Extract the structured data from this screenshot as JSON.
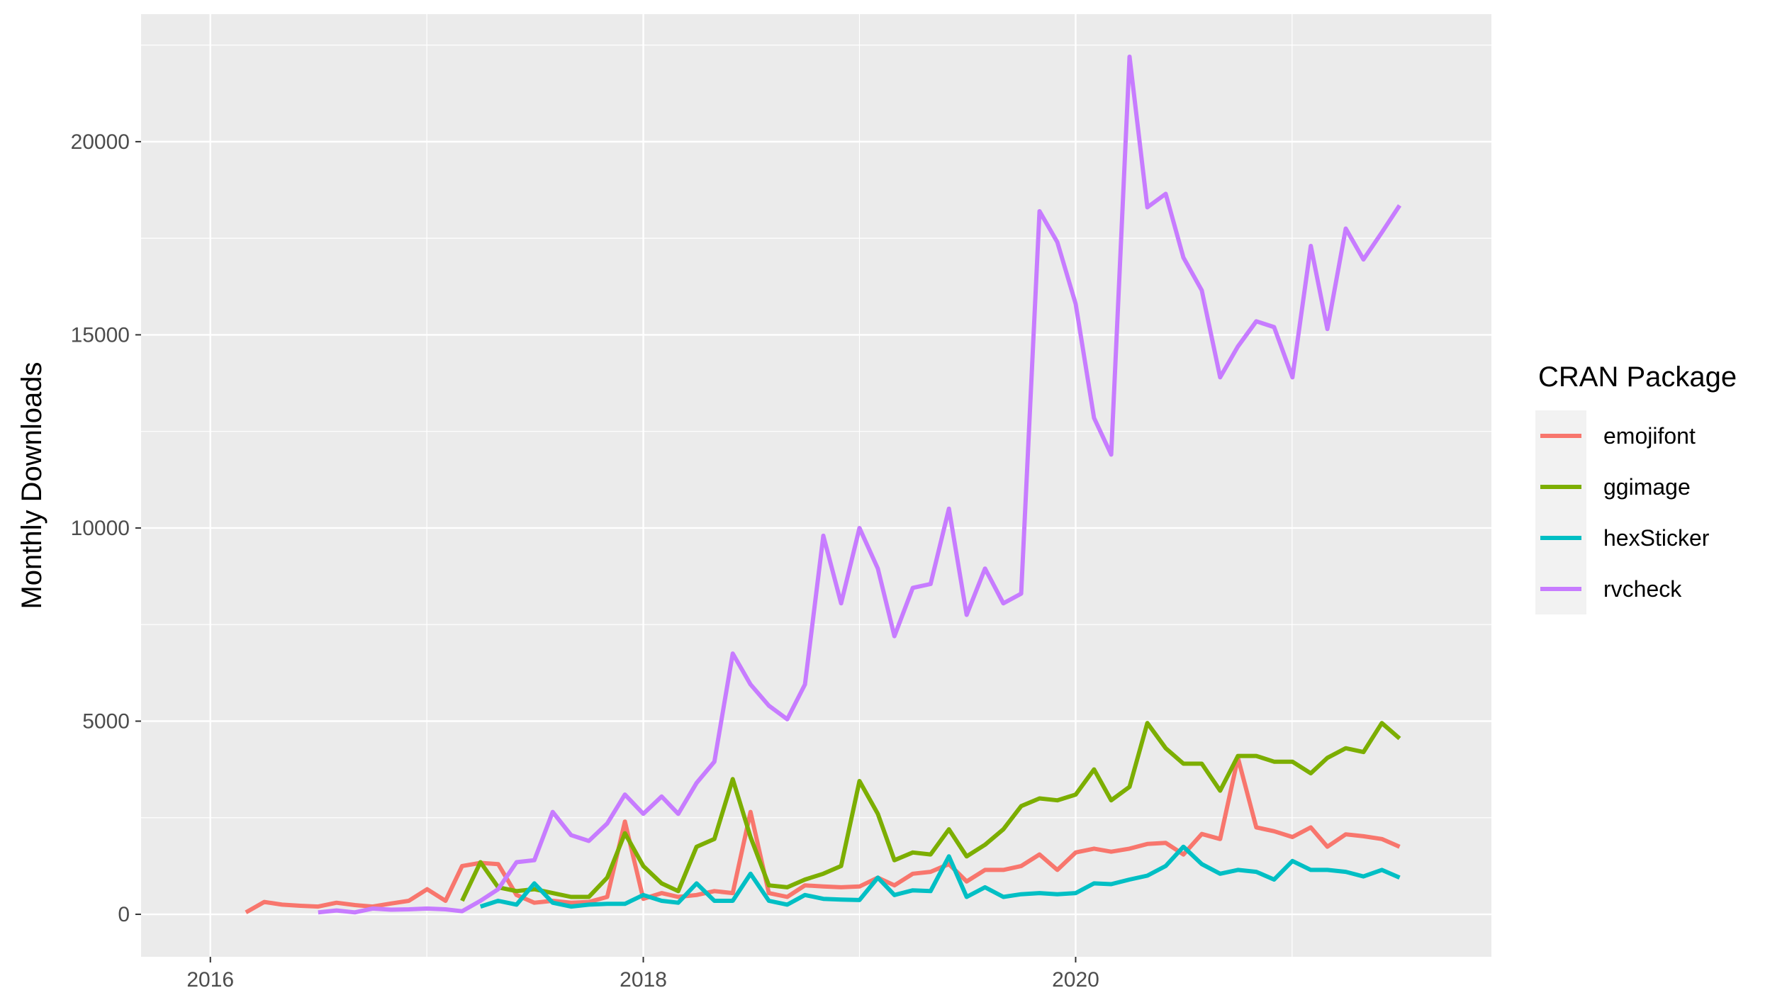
{
  "chart_data": {
    "type": "line",
    "title": "",
    "xlabel": "",
    "ylabel": "Monthly Downloads",
    "xlim": [
      "2015-09-06",
      "2021-12-03"
    ],
    "ylim": [
      -1100,
      23300
    ],
    "x_ticks": [
      {
        "date": "2016-01-01",
        "label": "2016"
      },
      {
        "date": "2018-01-01",
        "label": "2018"
      },
      {
        "date": "2020-01-01",
        "label": "2020"
      }
    ],
    "y_ticks": [
      {
        "value": 0,
        "label": "0"
      },
      {
        "value": 5000,
        "label": "5000"
      },
      {
        "value": 10000,
        "label": "10000"
      },
      {
        "value": 15000,
        "label": "15000"
      },
      {
        "value": 20000,
        "label": "20000"
      }
    ],
    "grid": true,
    "legend": {
      "title": "CRAN Package",
      "position": "right"
    },
    "series": [
      {
        "name": "emojifont",
        "color": "#F8766D",
        "points": [
          [
            "2016-03-01",
            50
          ],
          [
            "2016-04-01",
            320
          ],
          [
            "2016-05-01",
            250
          ],
          [
            "2016-06-01",
            220
          ],
          [
            "2016-07-01",
            200
          ],
          [
            "2016-08-01",
            300
          ],
          [
            "2016-09-01",
            240
          ],
          [
            "2016-10-01",
            200
          ],
          [
            "2016-11-01",
            280
          ],
          [
            "2016-12-01",
            350
          ],
          [
            "2017-01-01",
            650
          ],
          [
            "2017-02-01",
            350
          ],
          [
            "2017-03-01",
            1250
          ],
          [
            "2017-04-01",
            1330
          ],
          [
            "2017-05-01",
            1300
          ],
          [
            "2017-06-01",
            500
          ],
          [
            "2017-07-01",
            300
          ],
          [
            "2017-08-01",
            350
          ],
          [
            "2017-09-01",
            300
          ],
          [
            "2017-10-01",
            320
          ],
          [
            "2017-11-01",
            450
          ],
          [
            "2017-12-01",
            2400
          ],
          [
            "2018-01-01",
            400
          ],
          [
            "2018-02-01",
            550
          ],
          [
            "2018-03-01",
            450
          ],
          [
            "2018-04-01",
            500
          ],
          [
            "2018-05-01",
            600
          ],
          [
            "2018-06-01",
            550
          ],
          [
            "2018-07-01",
            2650
          ],
          [
            "2018-08-01",
            550
          ],
          [
            "2018-09-01",
            450
          ],
          [
            "2018-10-01",
            750
          ],
          [
            "2018-11-01",
            720
          ],
          [
            "2018-12-01",
            700
          ],
          [
            "2019-01-01",
            720
          ],
          [
            "2019-02-01",
            950
          ],
          [
            "2019-03-01",
            750
          ],
          [
            "2019-04-01",
            1050
          ],
          [
            "2019-05-01",
            1100
          ],
          [
            "2019-06-01",
            1300
          ],
          [
            "2019-07-01",
            850
          ],
          [
            "2019-08-01",
            1150
          ],
          [
            "2019-09-01",
            1150
          ],
          [
            "2019-10-01",
            1250
          ],
          [
            "2019-11-01",
            1550
          ],
          [
            "2019-12-01",
            1150
          ],
          [
            "2020-01-01",
            1600
          ],
          [
            "2020-02-01",
            1700
          ],
          [
            "2020-03-01",
            1620
          ],
          [
            "2020-04-01",
            1700
          ],
          [
            "2020-05-01",
            1820
          ],
          [
            "2020-06-01",
            1850
          ],
          [
            "2020-07-01",
            1550
          ],
          [
            "2020-08-01",
            2080
          ],
          [
            "2020-09-01",
            1950
          ],
          [
            "2020-10-01",
            4050
          ],
          [
            "2020-11-01",
            2250
          ],
          [
            "2020-12-01",
            2150
          ],
          [
            "2021-01-01",
            2000
          ],
          [
            "2021-02-01",
            2250
          ],
          [
            "2021-03-01",
            1750
          ],
          [
            "2021-04-01",
            2070
          ],
          [
            "2021-05-01",
            2020
          ],
          [
            "2021-06-01",
            1950
          ],
          [
            "2021-07-01",
            1750
          ]
        ]
      },
      {
        "name": "ggimage",
        "color": "#7CAE00",
        "points": [
          [
            "2017-03-01",
            350
          ],
          [
            "2017-04-01",
            1350
          ],
          [
            "2017-05-01",
            700
          ],
          [
            "2017-06-01",
            600
          ],
          [
            "2017-07-01",
            650
          ],
          [
            "2017-08-01",
            550
          ],
          [
            "2017-09-01",
            450
          ],
          [
            "2017-10-01",
            450
          ],
          [
            "2017-11-01",
            950
          ],
          [
            "2017-12-01",
            2100
          ],
          [
            "2018-01-01",
            1250
          ],
          [
            "2018-02-01",
            800
          ],
          [
            "2018-03-01",
            600
          ],
          [
            "2018-04-01",
            1750
          ],
          [
            "2018-05-01",
            1950
          ],
          [
            "2018-06-01",
            3500
          ],
          [
            "2018-07-01",
            2000
          ],
          [
            "2018-08-01",
            750
          ],
          [
            "2018-09-01",
            700
          ],
          [
            "2018-10-01",
            900
          ],
          [
            "2018-11-01",
            1050
          ],
          [
            "2018-12-01",
            1250
          ],
          [
            "2019-01-01",
            3450
          ],
          [
            "2019-02-01",
            2600
          ],
          [
            "2019-03-01",
            1400
          ],
          [
            "2019-04-01",
            1600
          ],
          [
            "2019-05-01",
            1550
          ],
          [
            "2019-06-01",
            2200
          ],
          [
            "2019-07-01",
            1500
          ],
          [
            "2019-08-01",
            1800
          ],
          [
            "2019-09-01",
            2200
          ],
          [
            "2019-10-01",
            2800
          ],
          [
            "2019-11-01",
            3000
          ],
          [
            "2019-12-01",
            2950
          ],
          [
            "2020-01-01",
            3100
          ],
          [
            "2020-02-01",
            3750
          ],
          [
            "2020-03-01",
            2950
          ],
          [
            "2020-04-01",
            3300
          ],
          [
            "2020-05-01",
            4950
          ],
          [
            "2020-06-01",
            4300
          ],
          [
            "2020-07-01",
            3900
          ],
          [
            "2020-08-01",
            3900
          ],
          [
            "2020-09-01",
            3200
          ],
          [
            "2020-10-01",
            4100
          ],
          [
            "2020-11-01",
            4100
          ],
          [
            "2020-12-01",
            3950
          ],
          [
            "2021-01-01",
            3950
          ],
          [
            "2021-02-01",
            3650
          ],
          [
            "2021-03-01",
            4050
          ],
          [
            "2021-04-01",
            4300
          ],
          [
            "2021-05-01",
            4200
          ],
          [
            "2021-06-01",
            4950
          ],
          [
            "2021-07-01",
            4550
          ]
        ]
      },
      {
        "name": "hexSticker",
        "color": "#00BFC4",
        "points": [
          [
            "2017-04-01",
            200
          ],
          [
            "2017-05-01",
            350
          ],
          [
            "2017-06-01",
            250
          ],
          [
            "2017-07-01",
            800
          ],
          [
            "2017-08-01",
            300
          ],
          [
            "2017-09-01",
            200
          ],
          [
            "2017-10-01",
            250
          ],
          [
            "2017-11-01",
            270
          ],
          [
            "2017-12-01",
            270
          ],
          [
            "2018-01-01",
            500
          ],
          [
            "2018-02-01",
            350
          ],
          [
            "2018-03-01",
            300
          ],
          [
            "2018-04-01",
            800
          ],
          [
            "2018-05-01",
            350
          ],
          [
            "2018-06-01",
            350
          ],
          [
            "2018-07-01",
            1050
          ],
          [
            "2018-08-01",
            350
          ],
          [
            "2018-09-01",
            250
          ],
          [
            "2018-10-01",
            500
          ],
          [
            "2018-11-01",
            400
          ],
          [
            "2018-12-01",
            380
          ],
          [
            "2019-01-01",
            370
          ],
          [
            "2019-02-01",
            950
          ],
          [
            "2019-03-01",
            500
          ],
          [
            "2019-04-01",
            620
          ],
          [
            "2019-05-01",
            600
          ],
          [
            "2019-06-01",
            1500
          ],
          [
            "2019-07-01",
            450
          ],
          [
            "2019-08-01",
            700
          ],
          [
            "2019-09-01",
            450
          ],
          [
            "2019-10-01",
            520
          ],
          [
            "2019-11-01",
            550
          ],
          [
            "2019-12-01",
            520
          ],
          [
            "2020-01-01",
            550
          ],
          [
            "2020-02-01",
            800
          ],
          [
            "2020-03-01",
            780
          ],
          [
            "2020-04-01",
            900
          ],
          [
            "2020-05-01",
            1000
          ],
          [
            "2020-06-01",
            1250
          ],
          [
            "2020-07-01",
            1750
          ],
          [
            "2020-08-01",
            1300
          ],
          [
            "2020-09-01",
            1050
          ],
          [
            "2020-10-01",
            1150
          ],
          [
            "2020-11-01",
            1100
          ],
          [
            "2020-12-01",
            900
          ],
          [
            "2021-01-01",
            1380
          ],
          [
            "2021-02-01",
            1150
          ],
          [
            "2021-03-01",
            1150
          ],
          [
            "2021-04-01",
            1100
          ],
          [
            "2021-05-01",
            980
          ],
          [
            "2021-06-01",
            1150
          ],
          [
            "2021-07-01",
            950
          ]
        ]
      },
      {
        "name": "rvcheck",
        "color": "#C77CFF",
        "points": [
          [
            "2016-07-01",
            50
          ],
          [
            "2016-08-01",
            100
          ],
          [
            "2016-09-01",
            50
          ],
          [
            "2016-10-01",
            150
          ],
          [
            "2016-11-01",
            120
          ],
          [
            "2016-12-01",
            130
          ],
          [
            "2017-01-01",
            150
          ],
          [
            "2017-02-01",
            130
          ],
          [
            "2017-03-01",
            80
          ],
          [
            "2017-04-01",
            350
          ],
          [
            "2017-05-01",
            650
          ],
          [
            "2017-06-01",
            1350
          ],
          [
            "2017-07-01",
            1400
          ],
          [
            "2017-08-01",
            2650
          ],
          [
            "2017-09-01",
            2050
          ],
          [
            "2017-10-01",
            1900
          ],
          [
            "2017-11-01",
            2350
          ],
          [
            "2017-12-01",
            3100
          ],
          [
            "2018-01-01",
            2600
          ],
          [
            "2018-02-01",
            3050
          ],
          [
            "2018-03-01",
            2600
          ],
          [
            "2018-04-01",
            3400
          ],
          [
            "2018-05-01",
            3950
          ],
          [
            "2018-06-01",
            6750
          ],
          [
            "2018-07-01",
            5950
          ],
          [
            "2018-08-01",
            5400
          ],
          [
            "2018-09-01",
            5050
          ],
          [
            "2018-10-01",
            5950
          ],
          [
            "2018-11-01",
            9800
          ],
          [
            "2018-12-01",
            8050
          ],
          [
            "2019-01-01",
            10000
          ],
          [
            "2019-02-01",
            8950
          ],
          [
            "2019-03-01",
            7200
          ],
          [
            "2019-04-01",
            8450
          ],
          [
            "2019-05-01",
            8550
          ],
          [
            "2019-06-01",
            10500
          ],
          [
            "2019-07-01",
            7750
          ],
          [
            "2019-08-01",
            8950
          ],
          [
            "2019-09-01",
            8050
          ],
          [
            "2019-10-01",
            8300
          ],
          [
            "2019-11-01",
            18200
          ],
          [
            "2019-12-01",
            17400
          ],
          [
            "2020-01-01",
            15800
          ],
          [
            "2020-02-01",
            12850
          ],
          [
            "2020-03-01",
            11900
          ],
          [
            "2020-04-01",
            22200
          ],
          [
            "2020-05-01",
            18300
          ],
          [
            "2020-06-01",
            18650
          ],
          [
            "2020-07-01",
            17000
          ],
          [
            "2020-08-01",
            16150
          ],
          [
            "2020-09-01",
            13900
          ],
          [
            "2020-10-01",
            14700
          ],
          [
            "2020-11-01",
            15350
          ],
          [
            "2020-12-01",
            15200
          ],
          [
            "2021-01-01",
            13900
          ],
          [
            "2021-02-01",
            17300
          ],
          [
            "2021-03-01",
            15150
          ],
          [
            "2021-04-01",
            17750
          ],
          [
            "2021-05-01",
            16950
          ],
          [
            "2021-06-01",
            17650
          ],
          [
            "2021-07-01",
            18350
          ]
        ]
      }
    ]
  }
}
